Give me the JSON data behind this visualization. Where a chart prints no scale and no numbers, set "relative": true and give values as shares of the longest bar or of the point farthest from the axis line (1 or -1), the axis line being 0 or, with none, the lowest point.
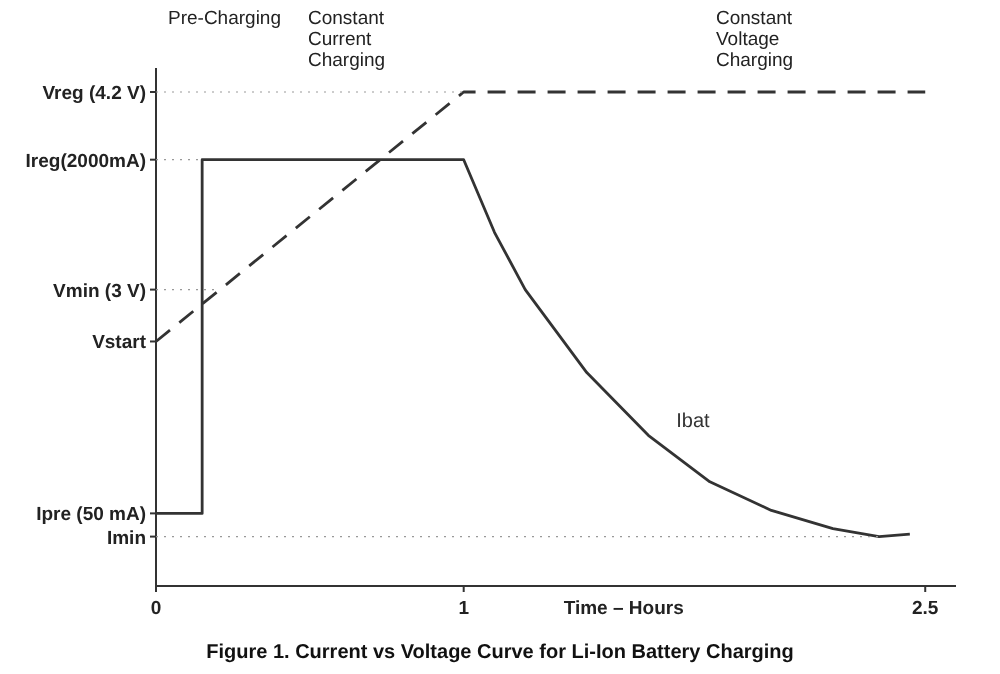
{
  "chart_data": {
    "type": "line",
    "title": "Figure 1. Current vs Voltage Curve for Li-Ion Battery Charging",
    "xlabel": "Time – Hours",
    "xlim": [
      0,
      2.6
    ],
    "xticks": [
      0,
      1,
      2.5
    ],
    "relative": true,
    "series": [
      {
        "name": "Ibat",
        "color": "#333333",
        "line_style": "solid",
        "x": [
          0,
          0.15,
          0.15,
          1,
          1.1,
          1.2,
          1.4,
          1.6,
          1.8,
          2,
          2.2,
          2.35,
          2.45
        ],
        "values": [
          0.147,
          0.147,
          0.863,
          0.863,
          0.716,
          0.6,
          0.432,
          0.305,
          0.211,
          0.153,
          0.116,
          0.1,
          0.105
        ]
      },
      {
        "color": "#333333",
        "line_style": "dashed",
        "x": [
          0,
          1,
          2.5
        ],
        "values": [
          0.495,
          1,
          1
        ]
      }
    ],
    "annotations": [
      "Pre-Charging",
      "Constant\nCurrent\nCharging",
      "Constant\nVoltage\nCharging",
      {
        "text": "Vreg (4.2 V)",
        "x": 1,
        "y": 1
      },
      {
        "text": "Ireg(2000mA)",
        "x": 0.15,
        "y": 0.863
      },
      {
        "text": "Vmin (3 V)",
        "x": 0.208,
        "y": 0.6
      },
      {
        "text": "Vstart",
        "x": 0,
        "y": 0.495
      },
      {
        "text": "Ipre (50 mA)",
        "x": 0,
        "y": 0.147
      },
      {
        "text": "Imin",
        "x": 2.35,
        "y": 0.1
      }
    ]
  }
}
